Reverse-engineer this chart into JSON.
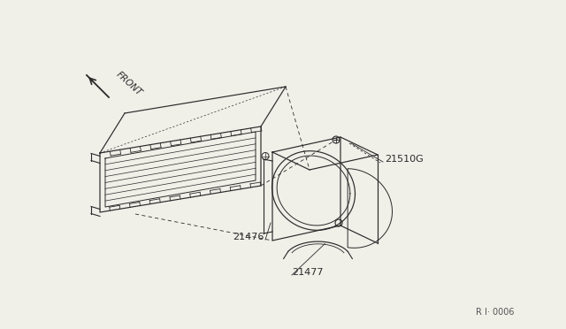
{
  "bg_color": "#f0efe8",
  "line_color": "#2a2a2a",
  "part_labels": {
    "21510G": [
      435,
      183
    ],
    "21476": [
      263,
      268
    ],
    "21477": [
      330,
      308
    ]
  },
  "front_label": "FRONT",
  "diagram_id": "R I· 0006"
}
